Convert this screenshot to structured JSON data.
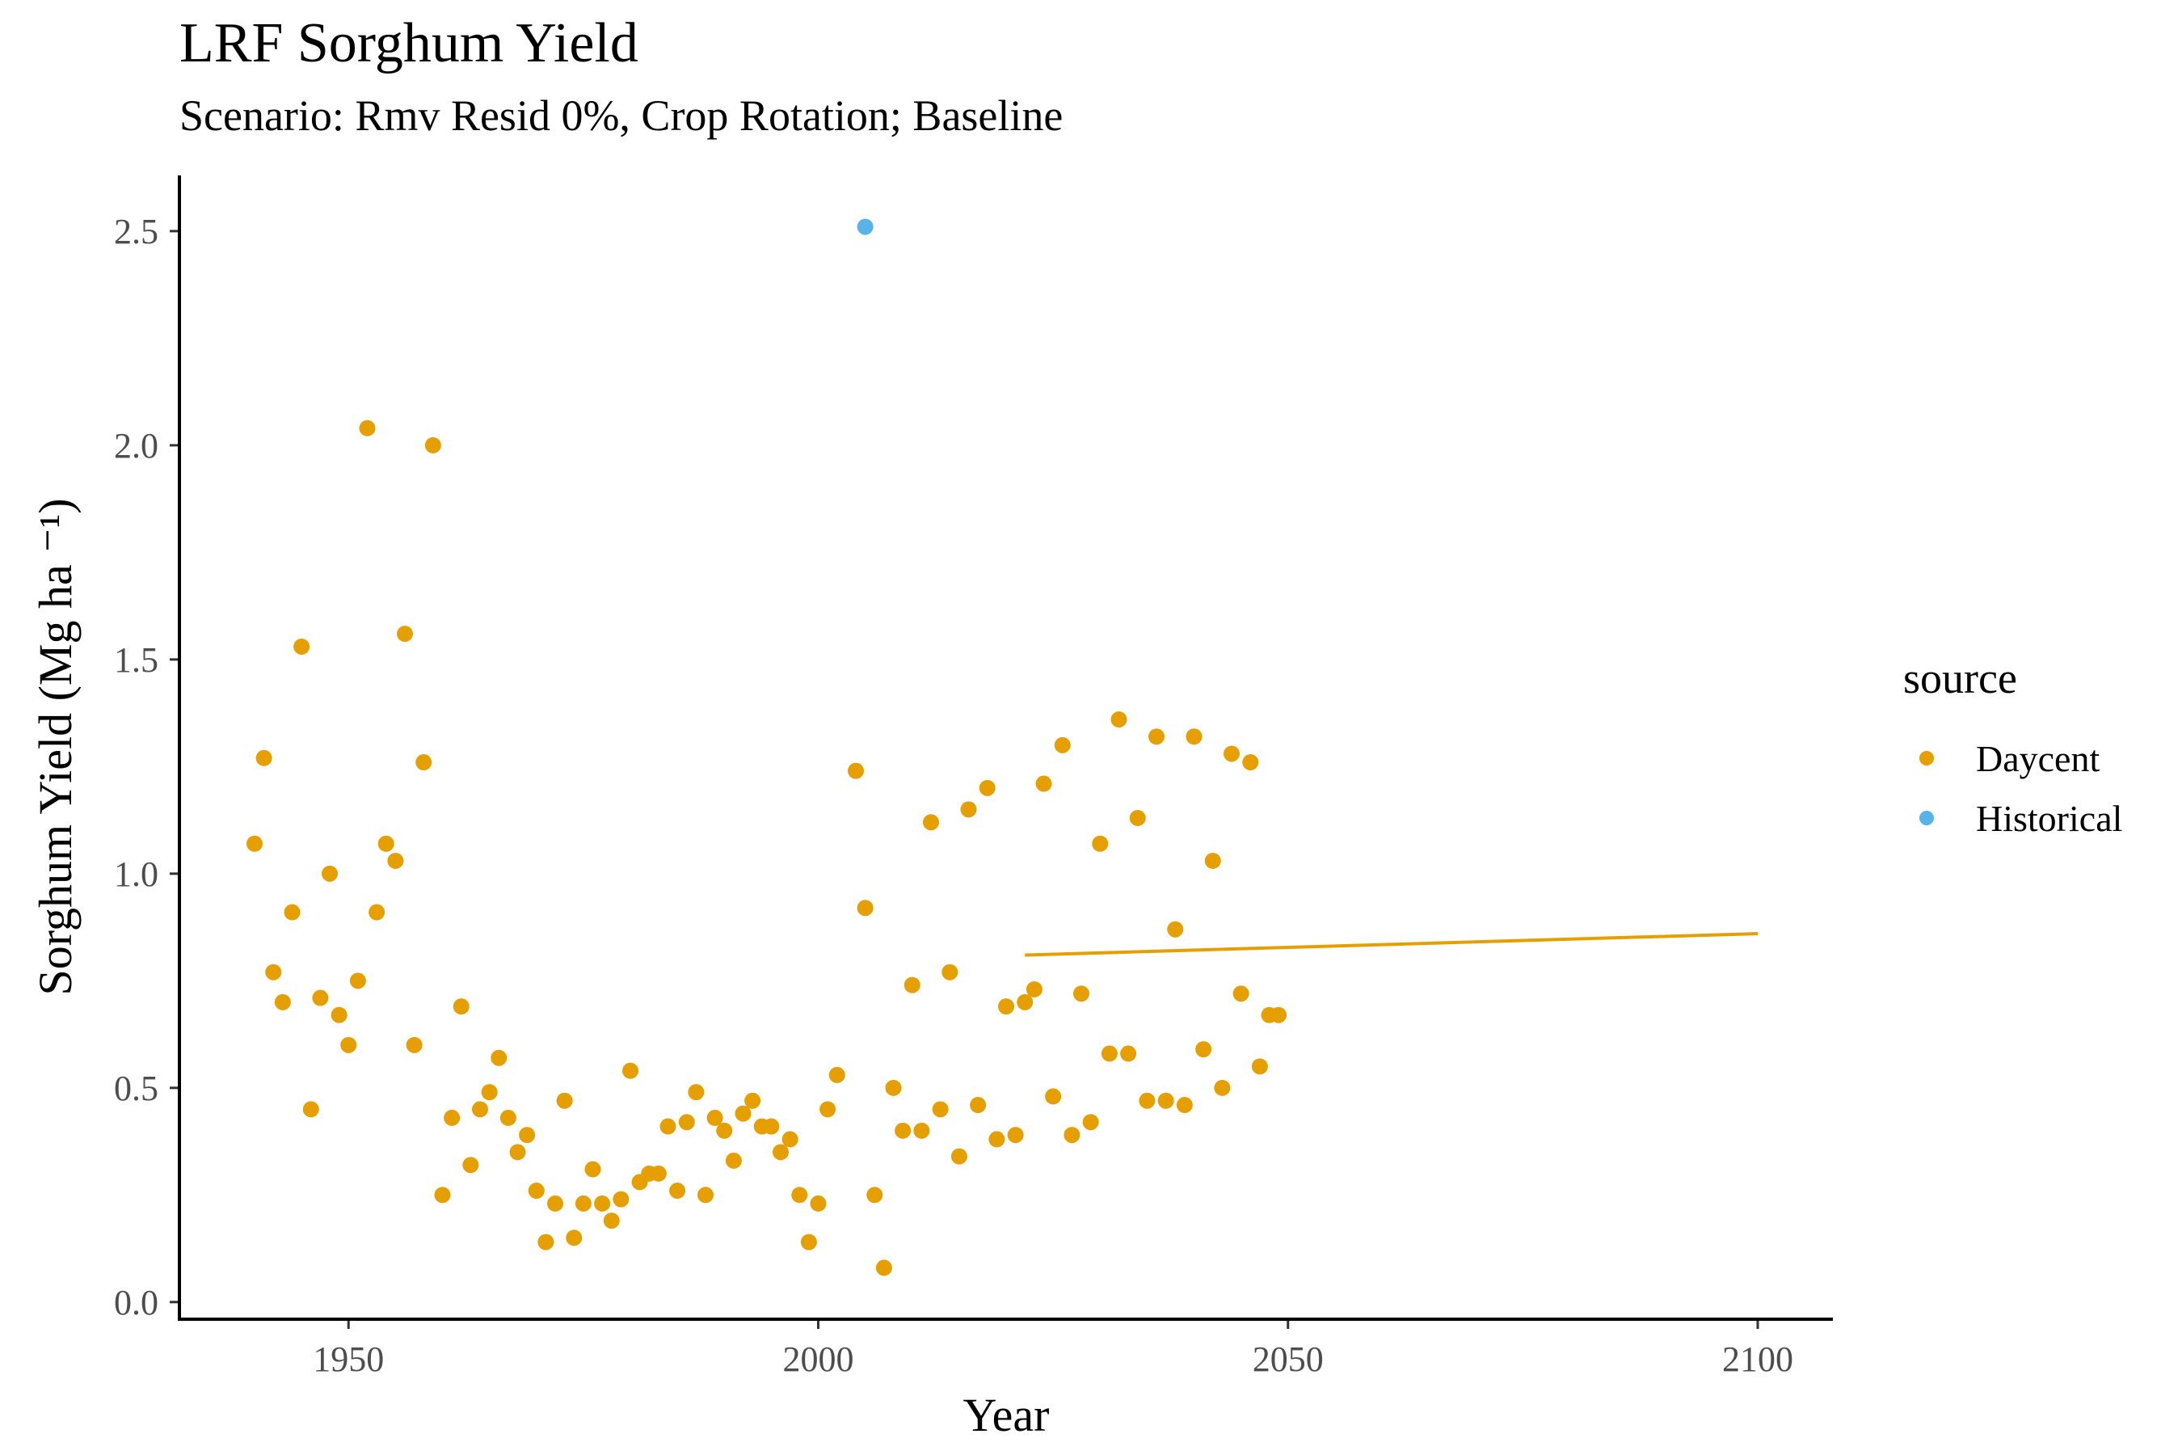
{
  "title": "LRF Sorghum Yield",
  "subtitle": "Scenario: Rmv Resid 0%, Crop Rotation; Baseline",
  "legend": {
    "title": "source",
    "items": [
      {
        "label": "Daycent",
        "color": "#E69F00"
      },
      {
        "label": "Historical",
        "color": "#56B4E9"
      }
    ]
  },
  "chart_data": {
    "type": "scatter",
    "xlabel": "Year",
    "ylabel": "Sorghum Yield (Mg ha ⁻¹)",
    "xlim": [
      1932,
      2108
    ],
    "ylim": [
      -0.04,
      2.63
    ],
    "xticks": [
      1950,
      2000,
      2050,
      2100
    ],
    "yticks": [
      0.0,
      0.5,
      1.0,
      1.5,
      2.0,
      2.5
    ],
    "ytick_labels": [
      "0.0",
      "0.5",
      "1.0",
      "1.5",
      "2.0",
      "2.5"
    ],
    "grid": false,
    "legend_position": "right",
    "series": [
      {
        "name": "Daycent",
        "color": "#E69F00",
        "points": [
          [
            1940,
            1.07
          ],
          [
            1941,
            1.27
          ],
          [
            1942,
            0.77
          ],
          [
            1943,
            0.7
          ],
          [
            1944,
            0.91
          ],
          [
            1945,
            1.53
          ],
          [
            1946,
            0.45
          ],
          [
            1947,
            0.71
          ],
          [
            1948,
            1.0
          ],
          [
            1949,
            0.67
          ],
          [
            1950,
            0.6
          ],
          [
            1951,
            0.75
          ],
          [
            1952,
            2.04
          ],
          [
            1953,
            0.91
          ],
          [
            1954,
            1.07
          ],
          [
            1955,
            1.03
          ],
          [
            1956,
            1.56
          ],
          [
            1957,
            0.6
          ],
          [
            1958,
            1.26
          ],
          [
            1959,
            2.0
          ],
          [
            1960,
            0.25
          ],
          [
            1961,
            0.43
          ],
          [
            1962,
            0.69
          ],
          [
            1963,
            0.32
          ],
          [
            1964,
            0.45
          ],
          [
            1965,
            0.49
          ],
          [
            1966,
            0.57
          ],
          [
            1967,
            0.43
          ],
          [
            1968,
            0.35
          ],
          [
            1969,
            0.39
          ],
          [
            1970,
            0.26
          ],
          [
            1971,
            0.14
          ],
          [
            1972,
            0.23
          ],
          [
            1973,
            0.47
          ],
          [
            1974,
            0.15
          ],
          [
            1975,
            0.23
          ],
          [
            1976,
            0.31
          ],
          [
            1977,
            0.23
          ],
          [
            1978,
            0.19
          ],
          [
            1979,
            0.24
          ],
          [
            1980,
            0.54
          ],
          [
            1981,
            0.28
          ],
          [
            1982,
            0.3
          ],
          [
            1983,
            0.3
          ],
          [
            1984,
            0.41
          ],
          [
            1985,
            0.26
          ],
          [
            1986,
            0.42
          ],
          [
            1987,
            0.49
          ],
          [
            1988,
            0.25
          ],
          [
            1989,
            0.43
          ],
          [
            1990,
            0.4
          ],
          [
            1991,
            0.33
          ],
          [
            1992,
            0.44
          ],
          [
            1993,
            0.47
          ],
          [
            1994,
            0.41
          ],
          [
            1995,
            0.41
          ],
          [
            1996,
            0.35
          ],
          [
            1997,
            0.38
          ],
          [
            1998,
            0.25
          ],
          [
            1999,
            0.14
          ],
          [
            2000,
            0.23
          ],
          [
            2001,
            0.45
          ],
          [
            2002,
            0.53
          ],
          [
            2004,
            1.24
          ],
          [
            2005,
            0.92
          ],
          [
            2006,
            0.25
          ],
          [
            2007,
            0.08
          ],
          [
            2008,
            0.5
          ],
          [
            2009,
            0.4
          ],
          [
            2010,
            0.74
          ],
          [
            2011,
            0.4
          ],
          [
            2012,
            1.12
          ],
          [
            2013,
            0.45
          ],
          [
            2014,
            0.77
          ],
          [
            2015,
            0.34
          ],
          [
            2016,
            1.15
          ],
          [
            2017,
            0.46
          ],
          [
            2018,
            1.2
          ],
          [
            2019,
            0.38
          ],
          [
            2020,
            0.69
          ],
          [
            2021,
            0.39
          ],
          [
            2022,
            0.7
          ],
          [
            2023,
            0.73
          ],
          [
            2024,
            1.21
          ],
          [
            2025,
            0.48
          ],
          [
            2026,
            1.3
          ],
          [
            2027,
            0.39
          ],
          [
            2028,
            0.72
          ],
          [
            2029,
            0.42
          ],
          [
            2030,
            1.07
          ],
          [
            2031,
            0.58
          ],
          [
            2032,
            1.36
          ],
          [
            2033,
            0.58
          ],
          [
            2034,
            1.13
          ],
          [
            2035,
            0.47
          ],
          [
            2036,
            1.32
          ],
          [
            2037,
            0.47
          ],
          [
            2038,
            0.87
          ],
          [
            2039,
            0.46
          ],
          [
            2040,
            1.32
          ],
          [
            2041,
            0.59
          ],
          [
            2042,
            1.03
          ],
          [
            2043,
            0.5
          ],
          [
            2044,
            1.28
          ],
          [
            2045,
            0.72
          ],
          [
            2046,
            1.26
          ],
          [
            2047,
            0.55
          ],
          [
            2048,
            0.67
          ],
          [
            2049,
            0.67
          ]
        ]
      },
      {
        "name": "Historical",
        "color": "#56B4E9",
        "points": [
          [
            2005,
            2.51
          ]
        ]
      }
    ],
    "trend_line": {
      "series": "Daycent",
      "color": "#E69F00",
      "points": [
        [
          2022,
          0.81
        ],
        [
          2100,
          0.86
        ]
      ]
    }
  }
}
